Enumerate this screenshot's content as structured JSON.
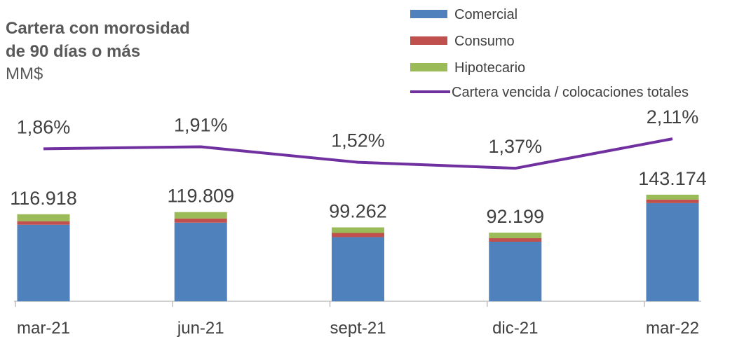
{
  "chart_data": {
    "type": "bar",
    "title": [
      "Cartera con morosidad",
      "de 90 días o más"
    ],
    "subtitle": "MM$",
    "categories": [
      "mar-21",
      "jun-21",
      "sept-21",
      "dic-21",
      "mar-22"
    ],
    "series": [
      {
        "name": "Comercial",
        "color": "#4f81bd",
        "values": [
          102818,
          105609,
          86162,
          79999,
          131874
        ]
      },
      {
        "name": "Consumo",
        "color": "#c0504d",
        "values": [
          4700,
          5600,
          5600,
          4700,
          4700
        ]
      },
      {
        "name": "Hipotecario",
        "color": "#9bbb59",
        "values": [
          9400,
          8600,
          7500,
          7500,
          6600
        ]
      },
      {
        "name": "Cartera vencida / colocaciones totales",
        "color": "#7030a0",
        "type": "line",
        "axis": "y2",
        "values": [
          1.86,
          1.91,
          1.52,
          1.37,
          2.11
        ],
        "value_labels": [
          "1,86%",
          "1,91%",
          "1,52%",
          "1,37%",
          "2,11%"
        ]
      }
    ],
    "totals": {
      "values": [
        116918,
        119809,
        99262,
        92199,
        143174
      ],
      "value_labels": [
        "116.918",
        "119.809",
        "99.262",
        "92.199",
        "143.174"
      ]
    },
    "ylim": [
      0,
      160000
    ],
    "y2lim": [
      0,
      2.5
    ]
  }
}
